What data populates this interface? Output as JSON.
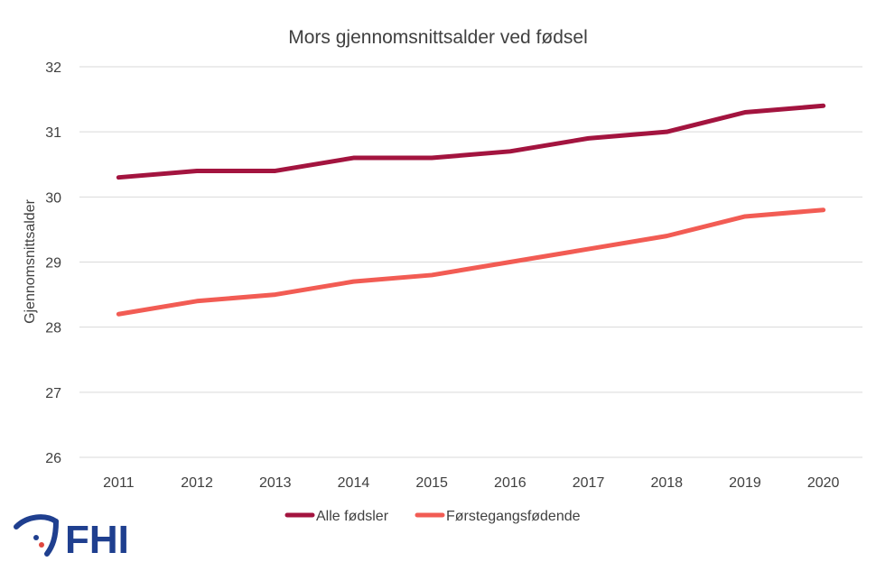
{
  "chart_data": {
    "type": "line",
    "title": "Mors gjennomsnittsalder ved fødsel",
    "ylabel": "Gjennomsnittsalder",
    "xlabel": "",
    "ylim": [
      26,
      32
    ],
    "yticks": [
      "26",
      "27",
      "28",
      "29",
      "30",
      "31",
      "32"
    ],
    "categories": [
      "2011",
      "2012",
      "2013",
      "2014",
      "2015",
      "2016",
      "2017",
      "2018",
      "2019",
      "2020"
    ],
    "grid": true,
    "legend_position": "bottom",
    "series": [
      {
        "name": "Alle fødsler",
        "color": "#a3143f",
        "values": [
          30.3,
          30.4,
          30.4,
          30.6,
          30.6,
          30.7,
          30.9,
          31.0,
          31.3,
          31.4
        ]
      },
      {
        "name": "Førstegangsfødende",
        "color": "#f25c54",
        "values": [
          28.2,
          28.4,
          28.5,
          28.7,
          28.8,
          29.0,
          29.2,
          29.4,
          29.7,
          29.8
        ]
      }
    ]
  },
  "logo": {
    "text": "FHI",
    "icon": "fhi-logo-icon",
    "color": "#1f3f8f"
  }
}
